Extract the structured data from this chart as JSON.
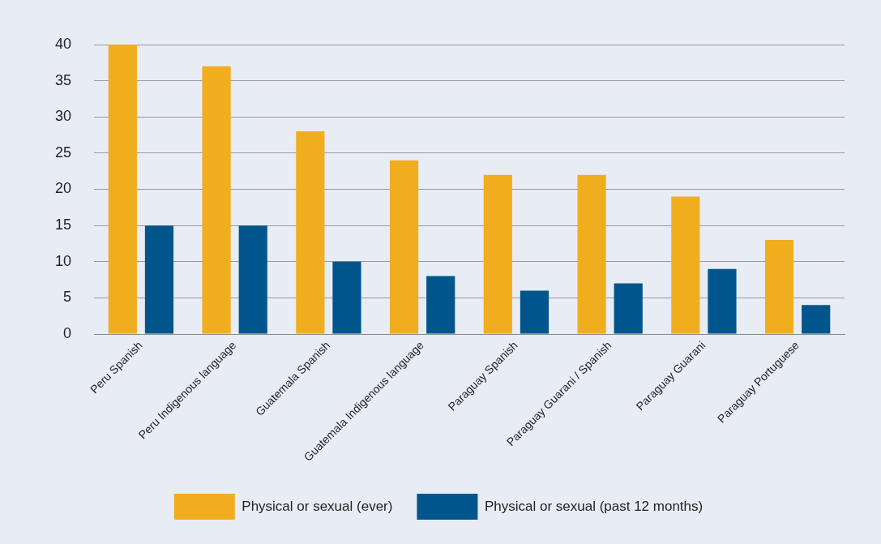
{
  "chart_data": {
    "type": "bar",
    "categories": [
      "Peru Spanish",
      "Peru Indigenous language",
      "Guatemala Spanish",
      "Guatemala Indigenous language",
      "Paraguay Spanish",
      "Paraguay Guarani / Spanish",
      "Paraguay Guarani",
      "Paraguay Portuguese"
    ],
    "series": [
      {
        "name": "Physical or sexual (ever)",
        "color": "#f0ae1f",
        "values": [
          40,
          37,
          28,
          24,
          22,
          22,
          19,
          13
        ]
      },
      {
        "name": "Physical or sexual (past 12 months)",
        "color": "#00568c",
        "values": [
          15,
          15,
          10,
          8,
          6,
          7,
          9,
          4
        ]
      }
    ],
    "ylim": [
      0,
      40
    ],
    "yticks": [
      0,
      5,
      10,
      15,
      20,
      25,
      30,
      35,
      40
    ],
    "grid": "y",
    "legend": "bottom"
  }
}
